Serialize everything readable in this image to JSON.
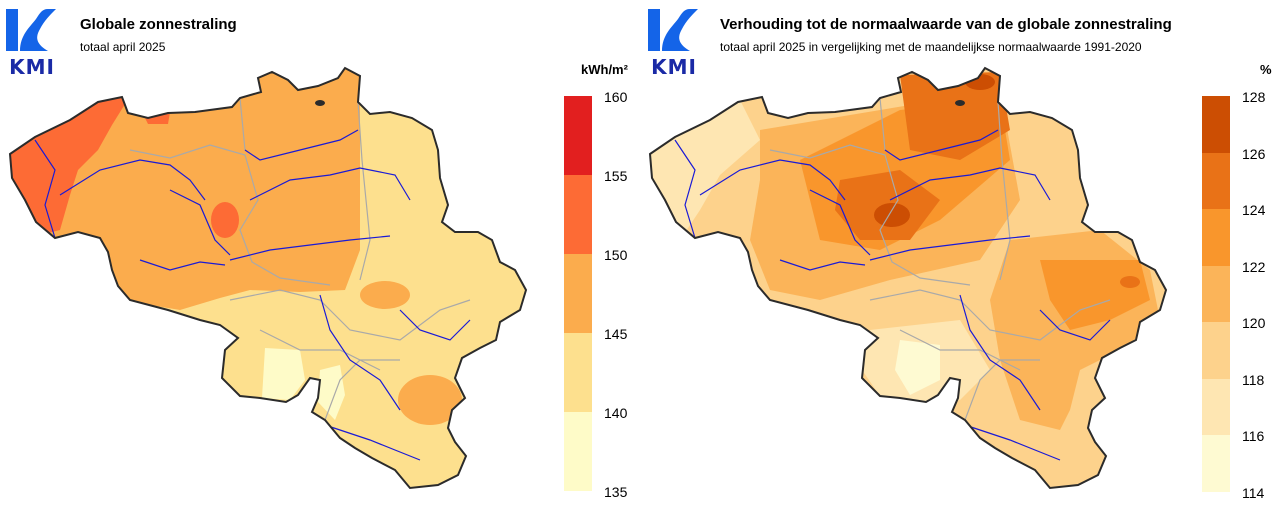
{
  "left": {
    "logo_text": "KMI",
    "title": "Globale zonnestraling",
    "subtitle": "totaal april 2025",
    "unit": "kWh/m²",
    "legend": {
      "ticks": [
        "160",
        "155",
        "150",
        "145",
        "140",
        "135"
      ],
      "colors": [
        "#e21f1f",
        "#fd6b35",
        "#fbac4d",
        "#fde08e",
        "#fefbc8"
      ]
    }
  },
  "right": {
    "logo_text": "KMI",
    "title": "Verhouding tot de normaalwaarde van de globale zonnestraling",
    "subtitle": "totaal april 2025 in vergelijking met de maandelijkse normaalwaarde 1991-2020",
    "unit": "%",
    "legend": {
      "ticks": [
        "128",
        "126",
        "124",
        "122",
        "120",
        "118",
        "116",
        "114"
      ],
      "colors": [
        "#cc4e03",
        "#e97217",
        "#f9962c",
        "#fbb459",
        "#fdd28c",
        "#fee6b2",
        "#fefad2"
      ]
    }
  },
  "colors": {
    "border": "#2b2b2b",
    "rivers": "#1a1ad6",
    "provinces": "#a9a9a9",
    "logo": "#1464e8"
  }
}
